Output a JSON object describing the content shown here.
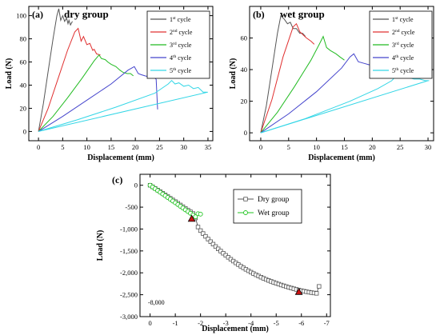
{
  "chart_data": [
    {
      "panel": "(a)",
      "title": "dry group",
      "type": "line",
      "xlabel": "Displacement (mm)",
      "ylabel": "Load (N)",
      "xlim": [
        -2,
        36
      ],
      "ylim": [
        -8,
        108
      ],
      "xticks": [
        0,
        5,
        10,
        15,
        20,
        25,
        30,
        35
      ],
      "yticks": [
        0,
        20,
        40,
        60,
        80,
        100
      ],
      "legend_position": "top-right",
      "series": [
        {
          "name": "1st cycle",
          "label_base": "1",
          "label_sup": "st",
          "label_rest": " cycle",
          "color": "#555555",
          "x": [
            0,
            1,
            2,
            3,
            3.8,
            4.2,
            4.6,
            5.0,
            5.4,
            5.8,
            6.1,
            6.3,
            6.6,
            7.0
          ],
          "y": [
            0,
            24,
            52,
            80,
            100,
            106,
            96,
            100,
            95,
            98,
            93,
            96,
            92,
            95
          ]
        },
        {
          "name": "2nd cycle",
          "label_base": "2",
          "label_sup": "nd",
          "label_rest": " cycle",
          "color": "#e03030",
          "x": [
            0,
            2,
            4,
            6,
            7.5,
            8.2,
            8.8,
            9.3,
            10.0,
            10.6,
            11.2,
            11.5,
            12.0,
            12.8
          ],
          "y": [
            0,
            20,
            45,
            70,
            86,
            89,
            78,
            82,
            75,
            76,
            70,
            71,
            67,
            66
          ]
        },
        {
          "name": "3rd cycle",
          "label_base": "3",
          "label_sup": "rd",
          "label_rest": " cycle",
          "color": "#22bb22",
          "x": [
            0,
            3,
            6,
            9,
            11.5,
            12.5,
            13.0,
            13.8,
            14.3,
            15.0,
            16.0,
            16.8,
            17.5,
            18.3,
            19.0,
            19.6
          ],
          "y": [
            0,
            13,
            29,
            46,
            61,
            66,
            63,
            62,
            60,
            58,
            56,
            53,
            51,
            50,
            50,
            48
          ]
        },
        {
          "name": "4th cycle",
          "label_base": "4",
          "label_sup": "th",
          "label_rest": " cycle",
          "color": "#4444cc",
          "x": [
            0,
            5,
            10,
            15,
            18.5,
            19.8,
            20.6,
            21.2,
            22.0,
            23.0,
            23.8,
            24.3,
            24.6
          ],
          "y": [
            0,
            13,
            27,
            41,
            53,
            56,
            50,
            49,
            48,
            47,
            47,
            45,
            19
          ]
        },
        {
          "name": "5th cycle",
          "label_base": "5",
          "label_sup": "th",
          "label_rest": " cycle",
          "color": "#33d6e6",
          "x": [
            0,
            8,
            16,
            24,
            26.8,
            27.5,
            28.2,
            29.0,
            30.0,
            31.0,
            32.0,
            33.0,
            34.0,
            34.8
          ],
          "y": [
            0,
            10,
            21,
            33,
            41,
            44,
            41,
            42,
            39,
            40,
            37,
            38,
            34,
            34
          ]
        },
        {
          "name": "5th cycle (baseline)",
          "color": "#33d6e6",
          "x": [
            0,
            35
          ],
          "y": [
            0,
            34
          ]
        }
      ]
    },
    {
      "panel": "(b)",
      "title": "wet group",
      "type": "line",
      "xlabel": "Displacement (mm)",
      "ylabel": "Load (N)",
      "xlim": [
        -2,
        31
      ],
      "ylim": [
        -5,
        80
      ],
      "xticks": [
        0,
        5,
        10,
        15,
        20,
        25,
        30
      ],
      "yticks": [
        0,
        20,
        40,
        60
      ],
      "legend_position": "top-right",
      "series": [
        {
          "name": "1st cycle",
          "label_base": "1",
          "label_sup": "st",
          "label_rest": " cycle",
          "color": "#555555",
          "x": [
            0,
            1,
            2,
            3,
            3.6,
            4.2,
            4.8,
            5.3,
            5.8,
            6.4,
            7.0,
            7.5,
            8.0
          ],
          "y": [
            0,
            17,
            40,
            63,
            74,
            72,
            69,
            70,
            66,
            66,
            63,
            63,
            61
          ]
        },
        {
          "name": "2nd cycle",
          "label_base": "2",
          "label_sup": "nd",
          "label_rest": " cycle",
          "color": "#e03030",
          "x": [
            0,
            2,
            4,
            5.8,
            6.4,
            7.0,
            7.6,
            8.2,
            9.0,
            9.6
          ],
          "y": [
            0,
            21,
            48,
            67,
            69,
            64,
            62,
            60,
            58,
            56
          ]
        },
        {
          "name": "3rd cycle",
          "label_base": "3",
          "label_sup": "rd",
          "label_rest": " cycle",
          "color": "#22bb22",
          "x": [
            0,
            3,
            6,
            9,
            10.5,
            11.2,
            11.8,
            12.5,
            13.5,
            14.2,
            15.0
          ],
          "y": [
            0,
            13,
            29,
            46,
            56,
            61,
            54,
            52,
            50,
            48,
            46
          ]
        },
        {
          "name": "4th cycle",
          "label_base": "4",
          "label_sup": "th",
          "label_rest": " cycle",
          "color": "#4444cc",
          "x": [
            0,
            5,
            10,
            14.5,
            16.0,
            16.7,
            17.5,
            18.5,
            19.5,
            20.5,
            21.5,
            22.2
          ],
          "y": [
            0,
            12,
            26,
            41,
            48,
            50,
            45,
            44,
            43,
            41,
            40,
            39
          ]
        },
        {
          "name": "5th cycle",
          "label_base": "5",
          "label_sup": "th",
          "label_rest": " cycle",
          "color": "#33d6e6",
          "x": [
            0,
            8,
            16,
            21,
            23.5,
            24.5,
            25.5,
            26.5,
            27.5,
            28.5,
            29.5,
            30.2
          ],
          "y": [
            0,
            9,
            20,
            28,
            33,
            37,
            36,
            35,
            34,
            34,
            33,
            33
          ]
        },
        {
          "name": "5th cycle (baseline)",
          "color": "#33d6e6",
          "x": [
            0,
            30
          ],
          "y": [
            0,
            33
          ]
        }
      ]
    },
    {
      "panel": "(c)",
      "type": "scatter",
      "xlabel": "Displacement (mm)",
      "ylabel": "Load (N)",
      "xlim": [
        0.4,
        -7.15
      ],
      "ylim": [
        -3000,
        250
      ],
      "xticks": [
        0,
        -1,
        -2,
        -3,
        -4,
        -5,
        -6,
        -7
      ],
      "yticks": [
        0,
        -500,
        -1000,
        -1500,
        -2000,
        -2500,
        -3000
      ],
      "ytick_labels": [
        "0",
        "-500",
        "-1,000",
        "-1,500",
        "-2,000",
        "-2,500",
        "-3,000"
      ],
      "annotation": "-8,000",
      "legend_position": "top-right",
      "series": [
        {
          "name": "Dry group",
          "marker": "square-open",
          "color": "#555555",
          "x": [
            0.0,
            -0.1,
            -0.2,
            -0.3,
            -0.4,
            -0.5,
            -0.6,
            -0.7,
            -0.8,
            -0.9,
            -1.0,
            -1.1,
            -1.2,
            -1.3,
            -1.4,
            -1.5,
            -1.6,
            -1.7,
            -1.8,
            -1.9,
            -2.0,
            -2.1,
            -2.2,
            -2.3,
            -2.4,
            -2.5,
            -2.6,
            -2.7,
            -2.8,
            -2.9,
            -3.0,
            -3.1,
            -3.2,
            -3.3,
            -3.4,
            -3.5,
            -3.6,
            -3.7,
            -3.8,
            -3.9,
            -4.0,
            -4.1,
            -4.2,
            -4.3,
            -4.4,
            -4.5,
            -4.6,
            -4.7,
            -4.8,
            -4.9,
            -5.0,
            -5.1,
            -5.2,
            -5.3,
            -5.4,
            -5.5,
            -5.6,
            -5.7,
            -5.8,
            -5.9,
            -6.0,
            -6.1,
            -6.2,
            -6.3,
            -6.4,
            -6.5,
            -6.6,
            -6.7
          ],
          "y": [
            0,
            -36,
            -73,
            -110,
            -147,
            -184,
            -222,
            -260,
            -298,
            -336,
            -374,
            -412,
            -451,
            -490,
            -529,
            -568,
            -607,
            -646,
            -747,
            -954,
            -1036,
            -1103,
            -1167,
            -1229,
            -1288,
            -1345,
            -1400,
            -1453,
            -1504,
            -1553,
            -1600,
            -1646,
            -1690,
            -1732,
            -1773,
            -1812,
            -1850,
            -1886,
            -1920,
            -1953,
            -1985,
            -2016,
            -2045,
            -2073,
            -2100,
            -2126,
            -2150,
            -2174,
            -2196,
            -2218,
            -2238,
            -2258,
            -2278,
            -2296,
            -2314,
            -2332,
            -2348,
            -2364,
            -2379,
            -2394,
            -2408,
            -2420,
            -2432,
            -2442,
            -2452,
            -2460,
            -2468,
            -2310
          ]
        },
        {
          "name": "Wet group",
          "marker": "circle-open",
          "color": "#22c522",
          "x": [
            0.0,
            -0.1,
            -0.2,
            -0.3,
            -0.4,
            -0.5,
            -0.6,
            -0.7,
            -0.8,
            -0.9,
            -1.0,
            -1.1,
            -1.2,
            -1.3,
            -1.4,
            -1.5,
            -1.6,
            -1.7,
            -1.8,
            -1.9,
            -2.0
          ],
          "y": [
            0,
            -40,
            -80,
            -120,
            -160,
            -200,
            -240,
            -280,
            -320,
            -360,
            -400,
            -440,
            -480,
            -520,
            -560,
            -600,
            -640,
            -680,
            -720,
            -650,
            -660
          ]
        },
        {
          "name": "Peak",
          "marker": "triangle-filled",
          "color": "#cc1111",
          "x": [
            -1.65,
            -5.9
          ],
          "y": [
            -770,
            -2440
          ]
        }
      ]
    }
  ]
}
